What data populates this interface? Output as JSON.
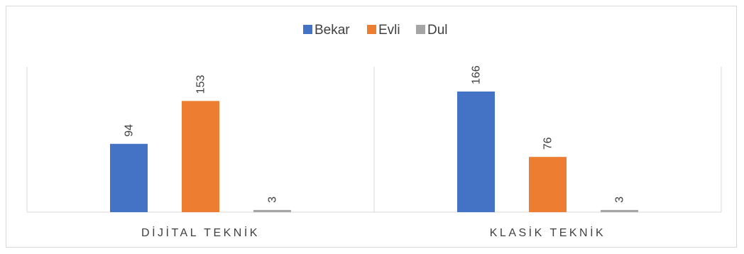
{
  "chart_data": {
    "type": "bar",
    "title": "",
    "xlabel": "",
    "ylabel": "",
    "categories": [
      "DİJİTAL TEKNİK",
      "KLASİK TEKNİK"
    ],
    "series": [
      {
        "name": "Bekar",
        "color": "#4472C4",
        "values": [
          94,
          166
        ]
      },
      {
        "name": "Evli",
        "color": "#ED7D31",
        "values": [
          153,
          76
        ]
      },
      {
        "name": "Dul",
        "color": "#A5A5A5",
        "values": [
          3,
          3
        ]
      }
    ],
    "ylim": [
      0,
      166
    ],
    "grid": false,
    "legend": "top-center",
    "data_labels": true
  }
}
